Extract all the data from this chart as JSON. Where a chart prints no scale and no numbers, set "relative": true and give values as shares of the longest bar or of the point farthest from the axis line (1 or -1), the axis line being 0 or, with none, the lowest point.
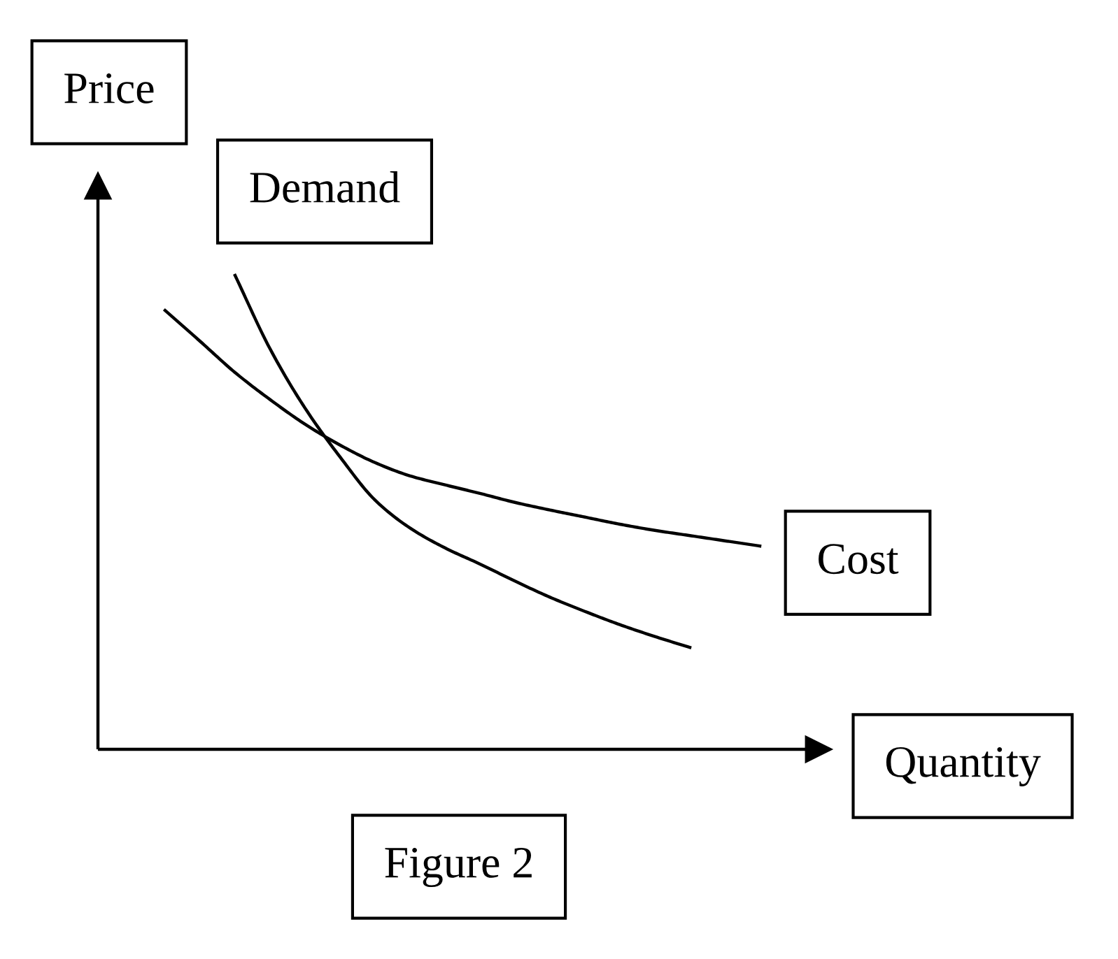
{
  "chart_data": {
    "type": "line",
    "relative": true,
    "xlabel": "Quantity",
    "ylabel": "Price",
    "annotations": [
      "Figure 2"
    ],
    "tick_labels": false,
    "line_style": "solid",
    "categories": [
      null,
      null,
      null,
      null,
      null,
      null,
      null,
      null,
      null,
      null,
      null,
      null,
      null,
      null,
      null,
      null,
      null,
      null
    ],
    "series": [
      {
        "name": "Demand",
        "color": "#000000",
        "values": [
          null,
          null,
          1.0,
          0.845,
          0.72,
          0.617,
          0.526,
          0.467,
          0.425,
          0.391,
          0.355,
          0.321,
          0.291,
          0.263,
          0.238,
          0.215,
          null,
          null
        ]
      },
      {
        "name": "Cost",
        "color": "#000000",
        "values": [
          0.926,
          0.861,
          0.795,
          0.738,
          0.686,
          0.642,
          0.605,
          0.577,
          0.558,
          0.54,
          0.521,
          0.505,
          0.49,
          0.475,
          0.462,
          0.451,
          0.44,
          0.429
        ]
      }
    ]
  }
}
